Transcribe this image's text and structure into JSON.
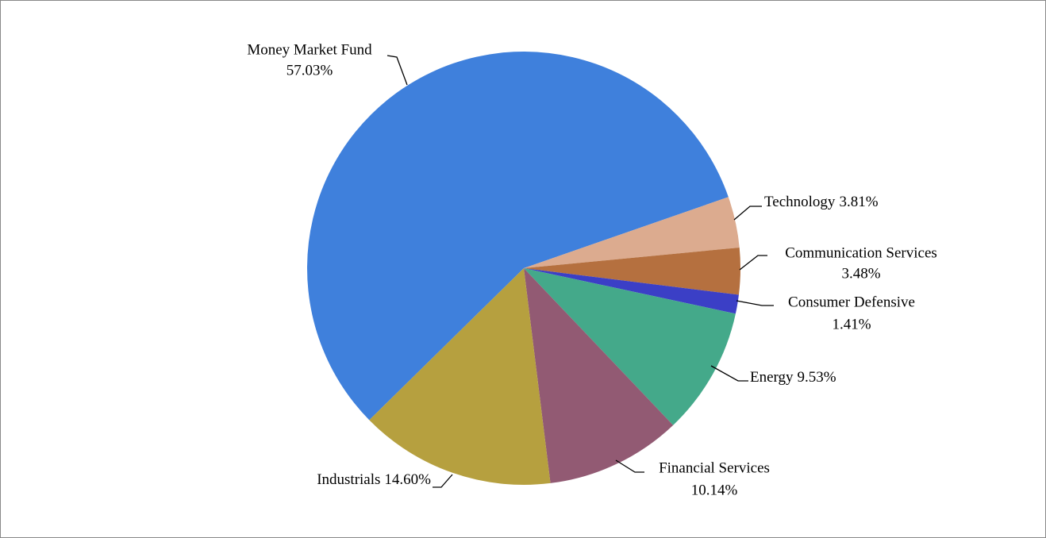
{
  "chart_data": {
    "type": "pie",
    "categories": [
      "Money Market Fund",
      "Technology",
      "Communication Services",
      "Consumer Defensive",
      "Energy",
      "Financial Services",
      "Industrials"
    ],
    "values": [
      57.03,
      3.81,
      3.48,
      1.41,
      9.53,
      10.14,
      14.6
    ],
    "value_labels": [
      "57.03%",
      "3.81%",
      "3.48%",
      "1.41%",
      "9.53%",
      "10.14%",
      "14.60%"
    ],
    "colors": [
      "#3f80dc",
      "#dcab8f",
      "#b5703f",
      "#3b3fc6",
      "#44a98a",
      "#925a73",
      "#b6a03f"
    ]
  }
}
